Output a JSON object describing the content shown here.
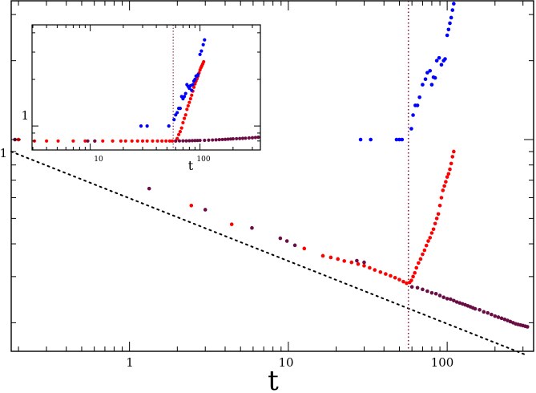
{
  "chart_data": [
    {
      "type": "scatter",
      "x_scale": "log",
      "y_scale": "log",
      "xlim": [
        0.18,
        350
      ],
      "ylim": [
        0.1556,
        3.385
      ],
      "x_tick_labels": [
        "1",
        "10",
        "100"
      ],
      "y_tick_labels": [
        "1"
      ],
      "xlabel": "t",
      "ylabel": "",
      "grid": false,
      "vline": {
        "x": 57,
        "color": "#8b1a3a"
      },
      "reference_line": {
        "x": [
          0.18,
          320
        ],
        "y": [
          0.9,
          0.15
        ],
        "style": "dotted",
        "color": "#000000"
      },
      "series": [
        {
          "color": "#ff0000",
          "points": [
            [
              0.2,
              1.0
            ],
            [
              2.45,
              0.56
            ],
            [
              4.4,
              0.475
            ],
            [
              12.6,
              0.384
            ],
            [
              16.5,
              0.36
            ],
            [
              18.5,
              0.355
            ],
            [
              20.5,
              0.35
            ],
            [
              22.5,
              0.344
            ],
            [
              25,
              0.34
            ],
            [
              27.5,
              0.335
            ],
            [
              30,
              0.33
            ],
            [
              32.5,
              0.324
            ],
            [
              35,
              0.318
            ],
            [
              38,
              0.312
            ],
            [
              41,
              0.307
            ],
            [
              44,
              0.302
            ],
            [
              47,
              0.297
            ],
            [
              50,
              0.292
            ],
            [
              53,
              0.287
            ],
            [
              55.5,
              0.283
            ],
            [
              58,
              0.285
            ],
            [
              59.5,
              0.29
            ],
            [
              61,
              0.3
            ],
            [
              62.5,
              0.31
            ],
            [
              64,
              0.324
            ],
            [
              66,
              0.338
            ],
            [
              68,
              0.35
            ],
            [
              70,
              0.365
            ],
            [
              72,
              0.378
            ],
            [
              74,
              0.394
            ],
            [
              76,
              0.41
            ],
            [
              78,
              0.422
            ],
            [
              80,
              0.44
            ],
            [
              82,
              0.455
            ],
            [
              84,
              0.478
            ],
            [
              86,
              0.5
            ],
            [
              88,
              0.52
            ],
            [
              90,
              0.56
            ],
            [
              92,
              0.6
            ],
            [
              94,
              0.64
            ],
            [
              96,
              0.665
            ],
            [
              98,
              0.69
            ],
            [
              100,
              0.72
            ],
            [
              102,
              0.74
            ],
            [
              104,
              0.77
            ],
            [
              106,
              0.81
            ],
            [
              108,
              0.86
            ],
            [
              110,
              0.9
            ]
          ]
        },
        {
          "color": "#0000ff",
          "points": [
            [
              28.5,
              1.0
            ],
            [
              33,
              1.0
            ],
            [
              48,
              1.0
            ],
            [
              50,
              1.0
            ],
            [
              52,
              1.0
            ],
            [
              59.5,
              1.1
            ],
            [
              61,
              1.24
            ],
            [
              63,
              1.35
            ],
            [
              65,
              1.35
            ],
            [
              67,
              1.45
            ],
            [
              70,
              1.62
            ],
            [
              73,
              1.7
            ],
            [
              75,
              1.8
            ],
            [
              78,
              1.83
            ],
            [
              80,
              1.62
            ],
            [
              82,
              1.73
            ],
            [
              84,
              1.72
            ],
            [
              86,
              2.0
            ],
            [
              89,
              2.05
            ],
            [
              92,
              1.93
            ],
            [
              95,
              2.0
            ],
            [
              97,
              2.03
            ],
            [
              100,
              2.5
            ],
            [
              102,
              2.63
            ],
            [
              104,
              2.78
            ],
            [
              106,
              2.92
            ],
            [
              108,
              3.12
            ],
            [
              110,
              3.3
            ]
          ]
        },
        {
          "color": "#6b0d45",
          "points": [
            [
              0.19,
              1.0
            ],
            [
              1.33,
              0.65
            ],
            [
              3.0,
              0.54
            ],
            [
              5.9,
              0.46
            ],
            [
              8.9,
              0.42
            ],
            [
              9.8,
              0.41
            ],
            [
              11.0,
              0.395
            ],
            [
              27,
              0.345
            ],
            [
              30,
              0.34
            ],
            [
              60,
              0.274
            ],
            [
              65,
              0.272
            ],
            [
              70,
              0.268
            ],
            [
              75,
              0.264
            ],
            [
              80,
              0.26
            ],
            [
              85,
              0.258
            ],
            [
              90,
              0.254
            ],
            [
              95,
              0.25
            ],
            [
              100,
              0.247
            ],
            [
              105,
              0.246
            ],
            [
              110,
              0.243
            ],
            [
              115,
              0.24
            ],
            [
              120,
              0.238
            ],
            [
              125,
              0.236
            ],
            [
              130,
              0.234
            ],
            [
              135,
              0.232
            ],
            [
              140,
              0.23
            ],
            [
              145,
              0.228
            ],
            [
              150,
              0.226
            ],
            [
              160,
              0.224
            ],
            [
              170,
              0.22
            ],
            [
              180,
              0.218
            ],
            [
              190,
              0.215
            ],
            [
              200,
              0.212
            ],
            [
              210,
              0.21
            ],
            [
              220,
              0.208
            ],
            [
              230,
              0.206
            ],
            [
              240,
              0.204
            ],
            [
              250,
              0.202
            ],
            [
              260,
              0.2
            ],
            [
              270,
              0.198
            ],
            [
              280,
              0.197
            ],
            [
              290,
              0.196
            ],
            [
              300,
              0.195
            ],
            [
              310,
              0.194
            ],
            [
              320,
              0.193
            ]
          ]
        }
      ]
    },
    {
      "type": "scatter",
      "x_scale": "log",
      "y_scale": "log",
      "xlim": [
        2.95,
        355
      ],
      "ylim": [
        0.7,
        4.5
      ],
      "x_tick_labels": [
        "10",
        "100"
      ],
      "y_tick_labels": [
        "1"
      ],
      "xlabel": "t",
      "ylabel": "",
      "grid": false,
      "vline": {
        "x": 57,
        "color": "#8b1a3a"
      },
      "series": [
        {
          "color": "#ff0000",
          "points": [
            [
              3.1,
              0.8
            ],
            [
              4.0,
              0.8
            ],
            [
              5.1,
              0.8
            ],
            [
              7.0,
              0.8
            ],
            [
              9.0,
              0.8
            ],
            [
              11,
              0.8
            ],
            [
              13,
              0.8
            ],
            [
              16,
              0.8
            ],
            [
              19,
              0.8
            ],
            [
              21,
              0.8
            ],
            [
              24,
              0.8
            ],
            [
              27,
              0.8
            ],
            [
              30,
              0.8
            ],
            [
              33,
              0.8
            ],
            [
              37,
              0.8
            ],
            [
              41,
              0.8
            ],
            [
              45,
              0.8
            ],
            [
              49,
              0.8
            ],
            [
              53,
              0.8
            ],
            [
              56,
              0.8
            ],
            [
              60,
              0.8
            ],
            [
              62,
              0.83
            ],
            [
              64,
              0.88
            ],
            [
              66,
              0.92
            ],
            [
              68,
              0.97
            ],
            [
              70,
              1.05
            ],
            [
              72,
              1.12
            ],
            [
              74,
              1.18
            ],
            [
              76,
              1.28
            ],
            [
              78,
              1.35
            ],
            [
              80,
              1.42
            ],
            [
              82,
              1.5
            ],
            [
              84,
              1.58
            ],
            [
              86,
              1.68
            ],
            [
              88,
              1.78
            ],
            [
              90,
              1.87
            ],
            [
              92,
              1.95
            ],
            [
              94,
              2.02
            ],
            [
              96,
              2.1
            ],
            [
              98,
              2.2
            ],
            [
              100,
              2.3
            ],
            [
              102,
              2.38
            ],
            [
              104,
              2.45
            ],
            [
              106,
              2.52
            ],
            [
              108,
              2.6
            ]
          ]
        },
        {
          "color": "#0000ff",
          "points": [
            [
              29,
              1.0
            ],
            [
              33,
              1.0
            ],
            [
              52,
              1.0
            ],
            [
              58,
              1.1
            ],
            [
              60,
              1.18
            ],
            [
              62,
              1.22
            ],
            [
              64,
              1.3
            ],
            [
              66,
              1.3
            ],
            [
              68,
              1.55
            ],
            [
              70,
              1.5
            ],
            [
              72,
              1.55
            ],
            [
              74,
              1.62
            ],
            [
              76,
              1.85
            ],
            [
              78,
              1.8
            ],
            [
              80,
              1.75
            ],
            [
              82,
              1.82
            ],
            [
              84,
              1.7
            ],
            [
              86,
              1.85
            ],
            [
              88,
              1.95
            ],
            [
              90,
              2.0
            ],
            [
              92,
              2.1
            ],
            [
              94,
              2.1
            ],
            [
              96,
              2.15
            ],
            [
              100,
              2.9
            ],
            [
              103,
              3.05
            ],
            [
              107,
              3.35
            ],
            [
              110,
              3.6
            ]
          ]
        },
        {
          "color": "#6b0d45",
          "points": [
            [
              9.5,
              0.8
            ],
            [
              11,
              0.8
            ],
            [
              60,
              0.8
            ],
            [
              65,
              0.801
            ],
            [
              70,
              0.802
            ],
            [
              75,
              0.802
            ],
            [
              80,
              0.803
            ],
            [
              85,
              0.804
            ],
            [
              90,
              0.805
            ],
            [
              95,
              0.806
            ],
            [
              100,
              0.807
            ],
            [
              110,
              0.808
            ],
            [
              120,
              0.81
            ],
            [
              130,
              0.812
            ],
            [
              140,
              0.814
            ],
            [
              150,
              0.816
            ],
            [
              160,
              0.818
            ],
            [
              170,
              0.82
            ],
            [
              180,
              0.822
            ],
            [
              190,
              0.824
            ],
            [
              200,
              0.826
            ],
            [
              215,
              0.828
            ],
            [
              230,
              0.83
            ],
            [
              245,
              0.832
            ],
            [
              260,
              0.834
            ],
            [
              280,
              0.837
            ],
            [
              300,
              0.84
            ],
            [
              320,
              0.843
            ],
            [
              340,
              0.846
            ]
          ]
        }
      ]
    }
  ]
}
